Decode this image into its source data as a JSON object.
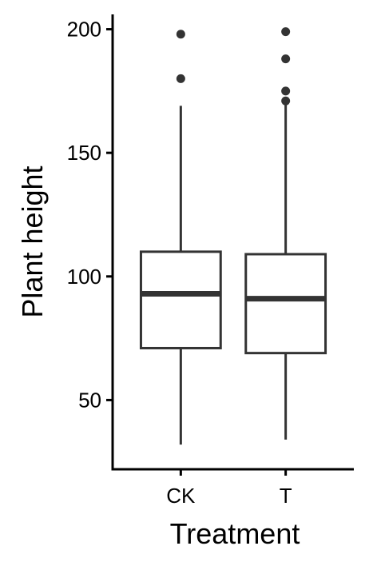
{
  "chart_data": {
    "type": "box",
    "xlabel": "Treatment",
    "ylabel": "Plant height",
    "ylim": [
      22,
      206
    ],
    "yticks": [
      50,
      100,
      150,
      200
    ],
    "categories": [
      "CK",
      "T"
    ],
    "boxes": [
      {
        "category": "CK",
        "lower_whisker": 32,
        "q1": 71,
        "median": 93,
        "q3": 110,
        "upper_whisker": 169,
        "outliers": [
          180,
          198
        ]
      },
      {
        "category": "T",
        "lower_whisker": 34,
        "q1": 69,
        "median": 91,
        "q3": 109,
        "upper_whisker": 170,
        "outliers": [
          171,
          175,
          188,
          199
        ]
      }
    ],
    "grid": false,
    "colors": {
      "box_line": "#333333",
      "outlier": "#333333",
      "axis": "#000000",
      "background": "#ffffff"
    }
  }
}
